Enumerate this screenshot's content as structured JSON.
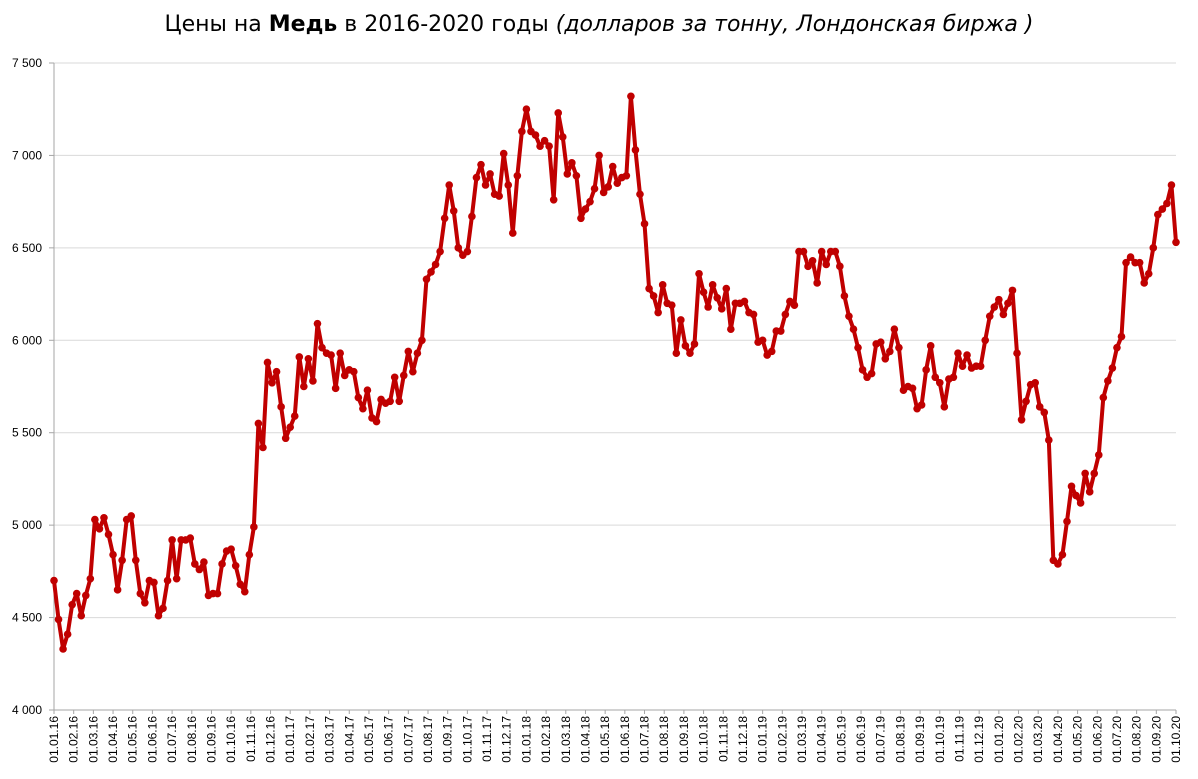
{
  "chart_data": {
    "type": "line",
    "title": {
      "prefix": "Цены на ",
      "bold": "Медь",
      "middle": " в 2016-2020 годы ",
      "italic": "(долларов за тонну, Лондонская биржа )"
    },
    "xlabel": "",
    "ylabel": "",
    "ylim": [
      4000,
      7500
    ],
    "yticks": [
      4000,
      4500,
      5000,
      5500,
      6000,
      6500,
      7000,
      7500
    ],
    "ytick_labels": [
      "4 000",
      "4 500",
      "5 000",
      "5 500",
      "6 000",
      "6 500",
      "7 000",
      "7 500"
    ],
    "xtick_labels": [
      "01.01.16",
      "01.02.16",
      "01.03.16",
      "01.04.16",
      "01.05.16",
      "01.06.16",
      "01.07.16",
      "01.08.16",
      "01.09.16",
      "01.10.16",
      "01.11.16",
      "01.12.16",
      "01.01.17",
      "01.02.17",
      "01.03.17",
      "01.04.17",
      "01.05.17",
      "01.06.17",
      "01.07.17",
      "01.08.17",
      "01.09.17",
      "01.10.17",
      "01.11.17",
      "01.12.17",
      "01.01.18",
      "01.02.18",
      "01.03.18",
      "01.04.18",
      "01.05.18",
      "01.06.18",
      "01.07.18",
      "01.08.18",
      "01.09.18",
      "01.10.18",
      "01.11.18",
      "01.12.18",
      "01.01.19",
      "01.02.19",
      "01.03.19",
      "01.04.19",
      "01.05.19",
      "01.06.19",
      "01.07.19",
      "01.08.19",
      "01.09.19",
      "01.10.19",
      "01.11.19",
      "01.12.19",
      "01.01.20",
      "01.02.20",
      "01.03.20",
      "01.04.20",
      "01.05.20",
      "01.06.20",
      "01.07.20",
      "01.08.20",
      "01.09.20",
      "01.10.20"
    ],
    "grid": true,
    "legend": "none",
    "line_color": "#C00000",
    "grid_color": "#D9D9D9",
    "axis_color": "#A6A6A6",
    "series": [
      {
        "values": [
          4700,
          4490,
          4330,
          4410,
          4570,
          4630,
          4510,
          4620,
          4710,
          5030,
          4980,
          5040,
          4950,
          4840,
          4650,
          4810,
          5030,
          5050,
          4810,
          4630,
          4580,
          4700,
          4690,
          4510,
          4550,
          4700,
          4920,
          4710,
          4920,
          4920,
          4930,
          4790,
          4760,
          4800,
          4620,
          4630,
          4630,
          4790,
          4860,
          4870,
          4780,
          4680,
          4640,
          4840,
          4990,
          5550,
          5420,
          5880,
          5770,
          5830,
          5640,
          5470,
          5530,
          5590,
          5910,
          5750,
          5900,
          5780,
          6090,
          5960,
          5930,
          5920,
          5740,
          5930,
          5810,
          5840,
          5830,
          5690,
          5630,
          5730,
          5580,
          5560,
          5680,
          5660,
          5670,
          5800,
          5670,
          5810,
          5940,
          5830,
          5930,
          6000,
          6330,
          6370,
          6410,
          6480,
          6660,
          6840,
          6700,
          6500,
          6460,
          6480,
          6670,
          6880,
          6950,
          6840,
          6900,
          6790,
          6780,
          7010,
          6840,
          6580,
          6890,
          7130,
          7250,
          7130,
          7110,
          7050,
          7080,
          7050,
          6760,
          7230,
          7100,
          6900,
          6960,
          6890,
          6660,
          6710,
          6750,
          6820,
          7000,
          6800,
          6830,
          6940,
          6850,
          6880,
          6890,
          7320,
          7030,
          6790,
          6630,
          6280,
          6240,
          6150,
          6300,
          6200,
          6190,
          5930,
          6110,
          5970,
          5930,
          5980,
          6360,
          6260,
          6180,
          6300,
          6230,
          6170,
          6280,
          6060,
          6200,
          6200,
          6210,
          6150,
          6140,
          5990,
          6000,
          5920,
          5940,
          6050,
          6050,
          6140,
          6210,
          6190,
          6480,
          6480,
          6400,
          6430,
          6310,
          6480,
          6410,
          6480,
          6480,
          6400,
          6240,
          6130,
          6060,
          5960,
          5840,
          5800,
          5820,
          5980,
          5990,
          5900,
          5940,
          6060,
          5960,
          5730,
          5750,
          5740,
          5630,
          5650,
          5840,
          5970,
          5800,
          5770,
          5640,
          5790,
          5800,
          5930,
          5860,
          5920,
          5850,
          5860,
          5860,
          6000,
          6130,
          6180,
          6220,
          6140,
          6200,
          6270,
          5930,
          5570,
          5670,
          5760,
          5770,
          5640,
          5610,
          5460,
          4810,
          4790,
          4840,
          5020,
          5210,
          5160,
          5120,
          5280,
          5180,
          5280,
          5380,
          5690,
          5780,
          5850,
          5960,
          6020,
          6420,
          6450,
          6420,
          6420,
          6310,
          6360,
          6500,
          6680,
          6710,
          6740,
          6840,
          6530
        ]
      }
    ]
  }
}
